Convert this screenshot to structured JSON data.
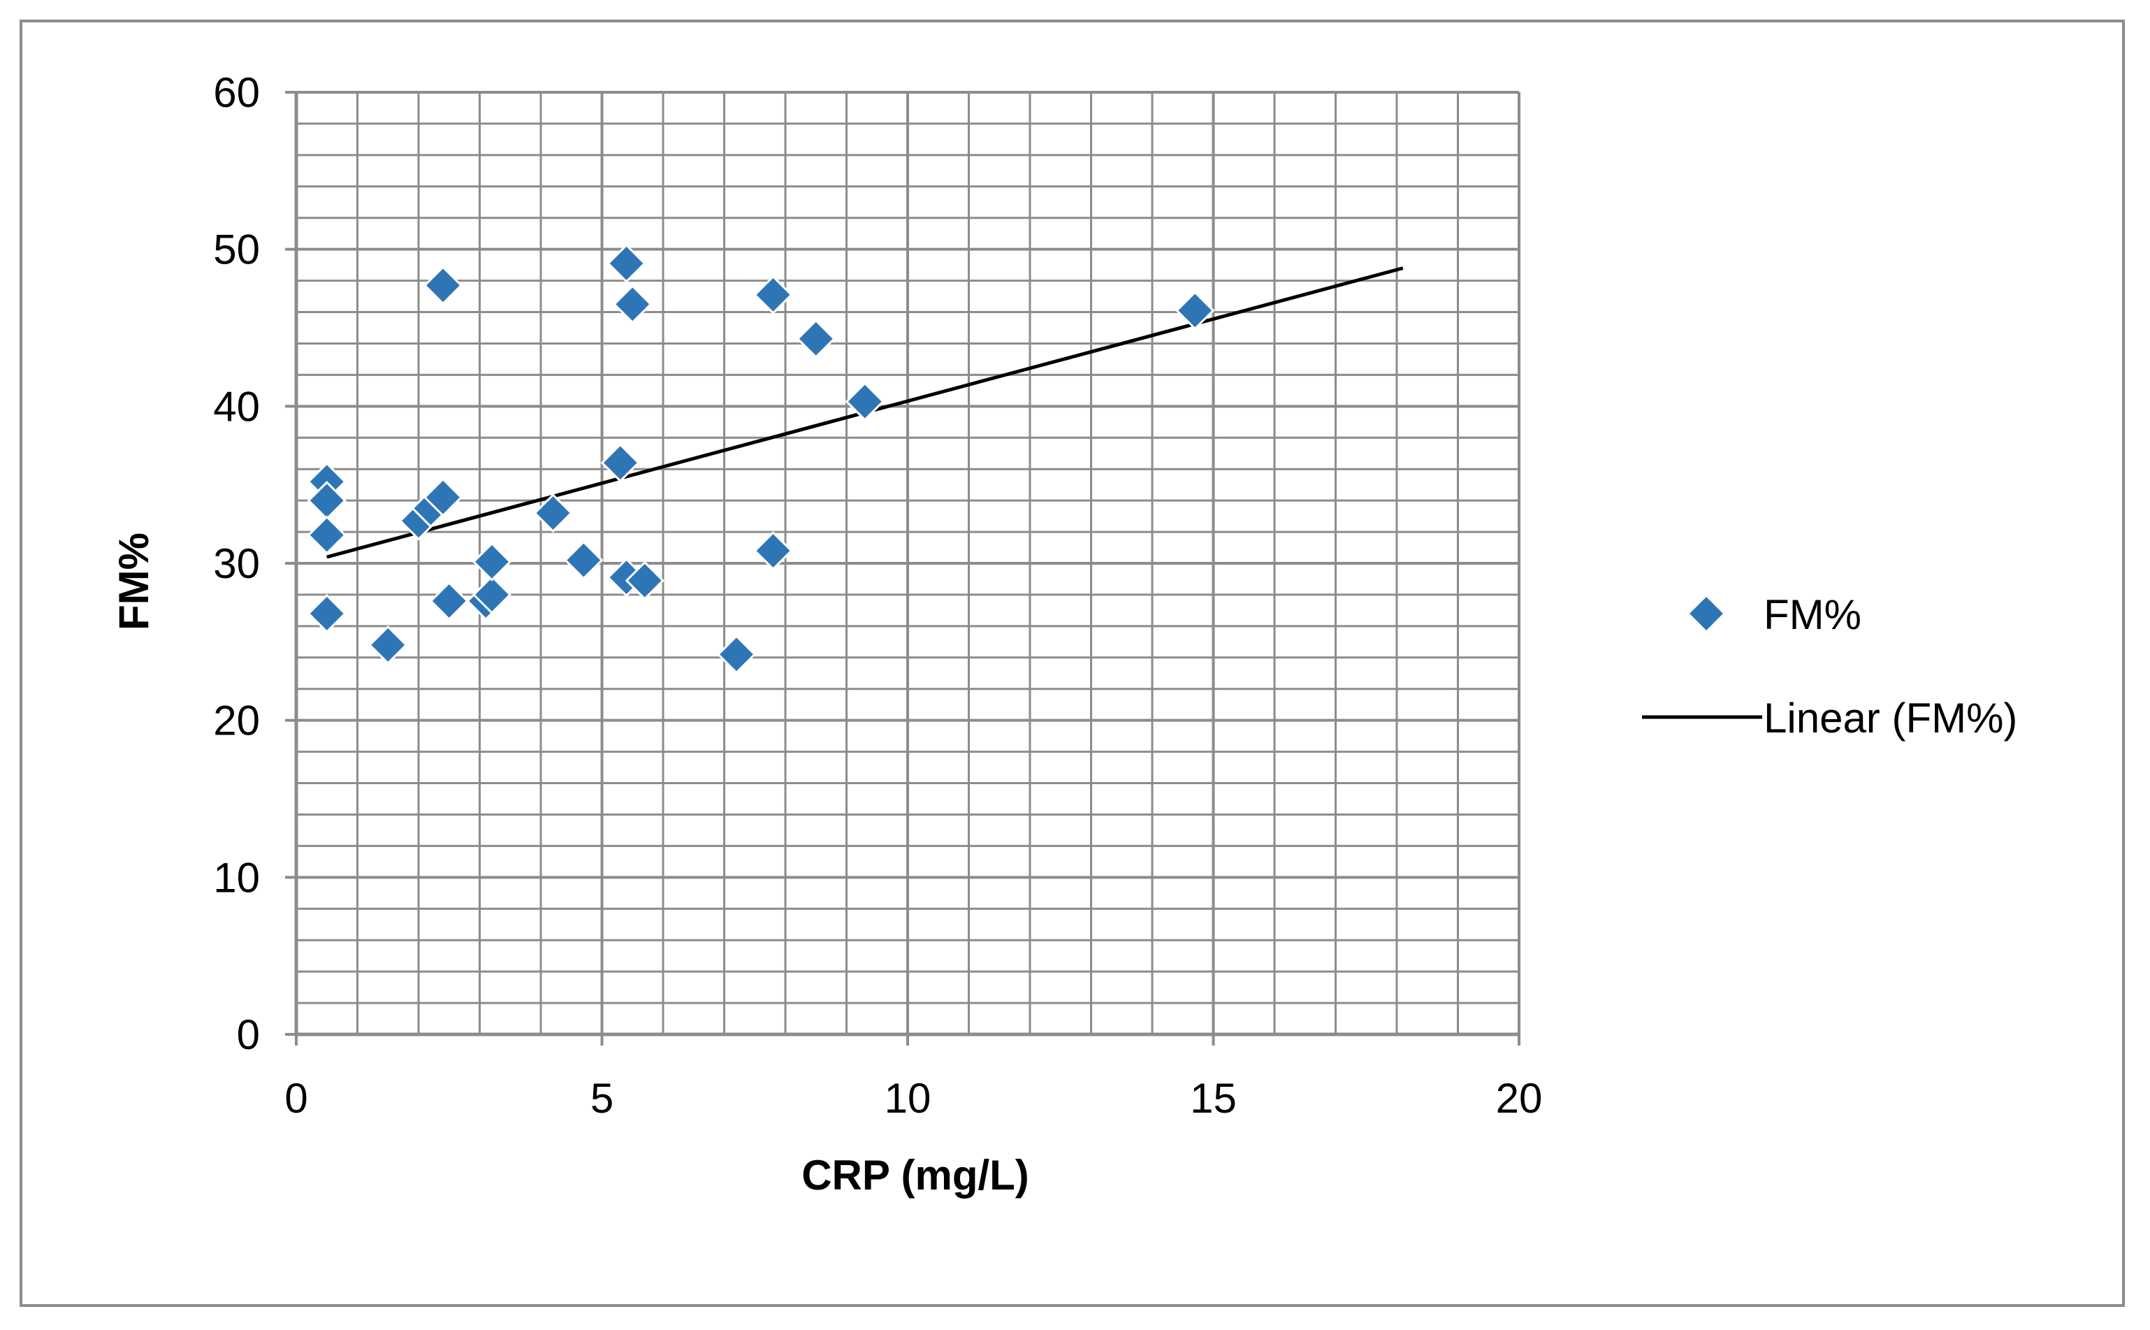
{
  "chart_data": {
    "type": "scatter",
    "title": "",
    "xlabel": "CRP (mg/L)",
    "ylabel": "FM%",
    "xlim": [
      0,
      20
    ],
    "ylim": [
      0,
      60
    ],
    "x_ticks": [
      "0",
      "5",
      "10",
      "15",
      "20"
    ],
    "y_ticks": [
      "0",
      "10",
      "20",
      "30",
      "40",
      "50",
      "60"
    ],
    "x_major_step": 5,
    "x_minor_step": 1,
    "y_major_step": 10,
    "y_minor_step": 2,
    "grid": true,
    "legend_position": "right",
    "marker_color": "#2e75b6",
    "line_color": "#000000",
    "series": [
      {
        "name": "FM%",
        "kind": "scatter",
        "marker": "diamond",
        "points": [
          {
            "x": 0.5,
            "y": 35.2
          },
          {
            "x": 0.5,
            "y": 34.0
          },
          {
            "x": 0.5,
            "y": 31.8
          },
          {
            "x": 0.5,
            "y": 26.8
          },
          {
            "x": 1.5,
            "y": 24.8
          },
          {
            "x": 2.0,
            "y": 32.7
          },
          {
            "x": 2.2,
            "y": 33.5
          },
          {
            "x": 2.4,
            "y": 34.2
          },
          {
            "x": 2.4,
            "y": 47.7
          },
          {
            "x": 2.5,
            "y": 27.6
          },
          {
            "x": 3.1,
            "y": 27.6
          },
          {
            "x": 3.2,
            "y": 28.0
          },
          {
            "x": 3.2,
            "y": 30.1
          },
          {
            "x": 4.2,
            "y": 33.2
          },
          {
            "x": 4.7,
            "y": 30.2
          },
          {
            "x": 5.3,
            "y": 36.4
          },
          {
            "x": 5.4,
            "y": 49.1
          },
          {
            "x": 5.5,
            "y": 46.5
          },
          {
            "x": 5.4,
            "y": 29.1
          },
          {
            "x": 5.7,
            "y": 28.9
          },
          {
            "x": 7.2,
            "y": 24.2
          },
          {
            "x": 7.8,
            "y": 47.1
          },
          {
            "x": 7.8,
            "y": 30.8
          },
          {
            "x": 8.5,
            "y": 44.3
          },
          {
            "x": 9.3,
            "y": 40.3
          },
          {
            "x": 14.7,
            "y": 46.1
          }
        ]
      },
      {
        "name": "Linear (FM%)",
        "kind": "line",
        "points": [
          {
            "x": 0.5,
            "y": 30.4
          },
          {
            "x": 18.1,
            "y": 48.8
          }
        ]
      }
    ]
  }
}
